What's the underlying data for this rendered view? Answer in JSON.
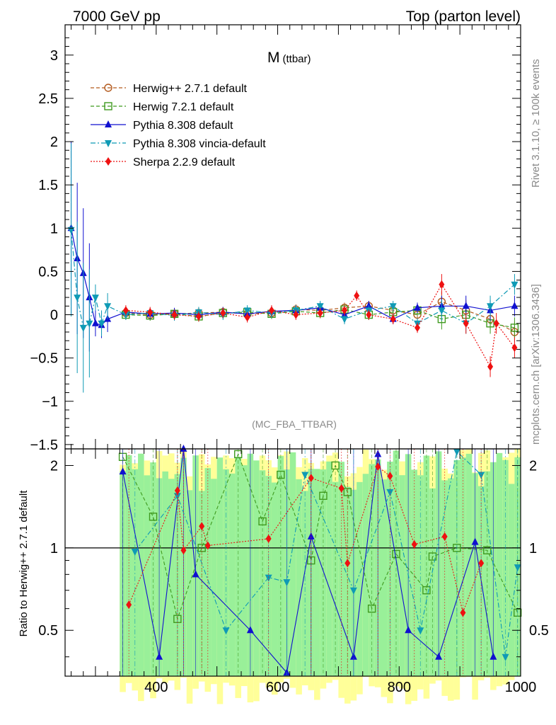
{
  "header": {
    "left": "7000 GeV pp",
    "right": "Top (parton level)"
  },
  "plot_title_main": "M",
  "plot_title_sub": "(ttbar)",
  "analysis_tag": "(MC_FBA_TTBAR)",
  "side_text_top": "Rivet 3.1.10, ≥ 100k events",
  "side_text_bottom": "mcplots.cern.ch [arXiv:1306.3436]",
  "legend": [
    {
      "label": "Herwig++ 2.7.1 default",
      "color": "#b35a1e",
      "marker": "open-circle",
      "line": "dashed"
    },
    {
      "label": "Herwig 7.2.1 default",
      "color": "#3f9a1f",
      "marker": "open-square",
      "line": "dashed"
    },
    {
      "label": "Pythia 8.308 default",
      "color": "#1010d0",
      "marker": "triangle-up",
      "line": "solid"
    },
    {
      "label": "Pythia 8.308 vincia-default",
      "color": "#0f9ab5",
      "marker": "triangle-down",
      "line": "dashdot"
    },
    {
      "label": "Sherpa 2.2.9 default",
      "color": "#ee1111",
      "marker": "diamond",
      "line": "dotted"
    }
  ],
  "chart_data": [
    {
      "type": "line",
      "panel": "main",
      "xlim": [
        250,
        1000
      ],
      "ylim": [
        -1.55,
        3.35
      ],
      "yticks": [
        "-1.5",
        "-1",
        "-0.5",
        "0",
        "0.5",
        "1",
        "1.5",
        "2",
        "2.5",
        "3"
      ],
      "xticks": [
        "400",
        "600",
        "800",
        "1000"
      ],
      "series": [
        {
          "name": "Herwig++ 2.7.1 default",
          "x": [
            350,
            390,
            430,
            470,
            510,
            550,
            590,
            630,
            670,
            710,
            750,
            790,
            830,
            870,
            910,
            950,
            990
          ],
          "y": [
            0.02,
            0.0,
            0.01,
            0.02,
            0.03,
            0.01,
            0.02,
            0.06,
            0.05,
            0.08,
            0.1,
            0.05,
            0.0,
            0.15,
            0.05,
            -0.05,
            -0.2
          ]
        },
        {
          "name": "Herwig 7.2.1 default",
          "x": [
            350,
            390,
            430,
            470,
            510,
            550,
            590,
            630,
            670,
            710,
            750,
            790,
            830,
            870,
            910,
            950,
            990
          ],
          "y": [
            0.0,
            -0.01,
            0.01,
            -0.02,
            0.02,
            0.03,
            0.01,
            0.04,
            0.02,
            0.06,
            0.0,
            0.03,
            0.05,
            -0.05,
            0.0,
            -0.1,
            -0.15
          ]
        },
        {
          "name": "Pythia 8.308 default",
          "x": [
            260,
            270,
            280,
            290,
            300,
            310,
            320,
            350,
            390,
            430,
            470,
            510,
            550,
            590,
            630,
            670,
            710,
            750,
            790,
            830,
            870,
            910,
            950,
            990
          ],
          "y": [
            1.0,
            0.65,
            0.48,
            0.2,
            -0.1,
            -0.12,
            -0.05,
            0.03,
            0.01,
            0.02,
            0.0,
            0.03,
            0.01,
            0.04,
            0.05,
            0.08,
            0.0,
            0.1,
            -0.05,
            0.08,
            0.1,
            0.1,
            0.05,
            0.1
          ]
        },
        {
          "name": "Pythia 8.308 vincia-default",
          "x": [
            260,
            270,
            280,
            290,
            300,
            310,
            320,
            350,
            390,
            430,
            470,
            510,
            550,
            590,
            630,
            670,
            710,
            750,
            790,
            830,
            870,
            910,
            950,
            990
          ],
          "y": [
            0.98,
            0.2,
            -0.15,
            -0.1,
            0.2,
            -0.1,
            0.1,
            0.0,
            0.02,
            -0.01,
            0.03,
            0.0,
            0.05,
            0.02,
            0.05,
            0.1,
            -0.05,
            0.05,
            0.1,
            -0.1,
            0.05,
            -0.1,
            0.1,
            0.35
          ]
        },
        {
          "name": "Sherpa 2.2.9 default",
          "x": [
            350,
            390,
            430,
            470,
            510,
            550,
            590,
            630,
            670,
            710,
            730,
            750,
            790,
            830,
            870,
            910,
            950,
            960,
            990
          ],
          "y": [
            0.05,
            0.03,
            0.0,
            -0.02,
            0.02,
            -0.03,
            0.05,
            0.0,
            0.02,
            0.05,
            0.22,
            0.0,
            -0.05,
            -0.15,
            0.35,
            -0.1,
            -0.6,
            -0.1,
            -0.38
          ]
        }
      ]
    },
    {
      "type": "line",
      "panel": "ratio",
      "ylabel": "Ratio to Herwig++ 2.7.1 default",
      "xlim": [
        250,
        1000
      ],
      "ylim": [
        0.34,
        2.3
      ],
      "yticks": [
        "0.5",
        "1",
        "2"
      ],
      "xticks": [
        "400",
        "600",
        "800",
        "1000"
      ],
      "reference_line": 1,
      "series": [
        {
          "name": "Herwig 7.2.1 default",
          "x": [
            345,
            395,
            435,
            475,
            535,
            575,
            605,
            655,
            675,
            695,
            715,
            755,
            795,
            845,
            855,
            895,
            945,
            995
          ],
          "y": [
            2.15,
            1.3,
            0.55,
            1.0,
            2.2,
            1.25,
            1.85,
            0.9,
            1.55,
            2.0,
            1.6,
            0.6,
            0.95,
            0.7,
            0.93,
            1.0,
            0.98,
            0.58
          ]
        },
        {
          "name": "Pythia 8.308 default",
          "x": [
            345,
            405,
            445,
            465,
            555,
            615,
            655,
            725,
            765,
            815,
            865,
            925,
            955
          ],
          "y": [
            1.9,
            0.4,
            2.3,
            0.8,
            0.5,
            0.35,
            1.1,
            0.4,
            2.2,
            0.5,
            0.4,
            1.05,
            0.4
          ]
        },
        {
          "name": "Pythia 8.308 vincia-default",
          "x": [
            365,
            435,
            515,
            585,
            615,
            645,
            725,
            785,
            835,
            895,
            935,
            975,
            995
          ],
          "y": [
            0.97,
            1.55,
            0.5,
            0.78,
            0.75,
            1.85,
            0.7,
            1.6,
            0.5,
            2.25,
            1.85,
            0.4,
            0.85
          ]
        },
        {
          "name": "Sherpa 2.2.9 default",
          "x": [
            355,
            435,
            445,
            475,
            485,
            585,
            655,
            705,
            715,
            765,
            785,
            825,
            875,
            905,
            935
          ],
          "y": [
            0.62,
            1.62,
            0.98,
            1.2,
            1.02,
            1.08,
            1.8,
            1.65,
            0.88,
            1.98,
            1.83,
            1.03,
            1.1,
            0.58,
            0.88
          ]
        }
      ]
    }
  ]
}
